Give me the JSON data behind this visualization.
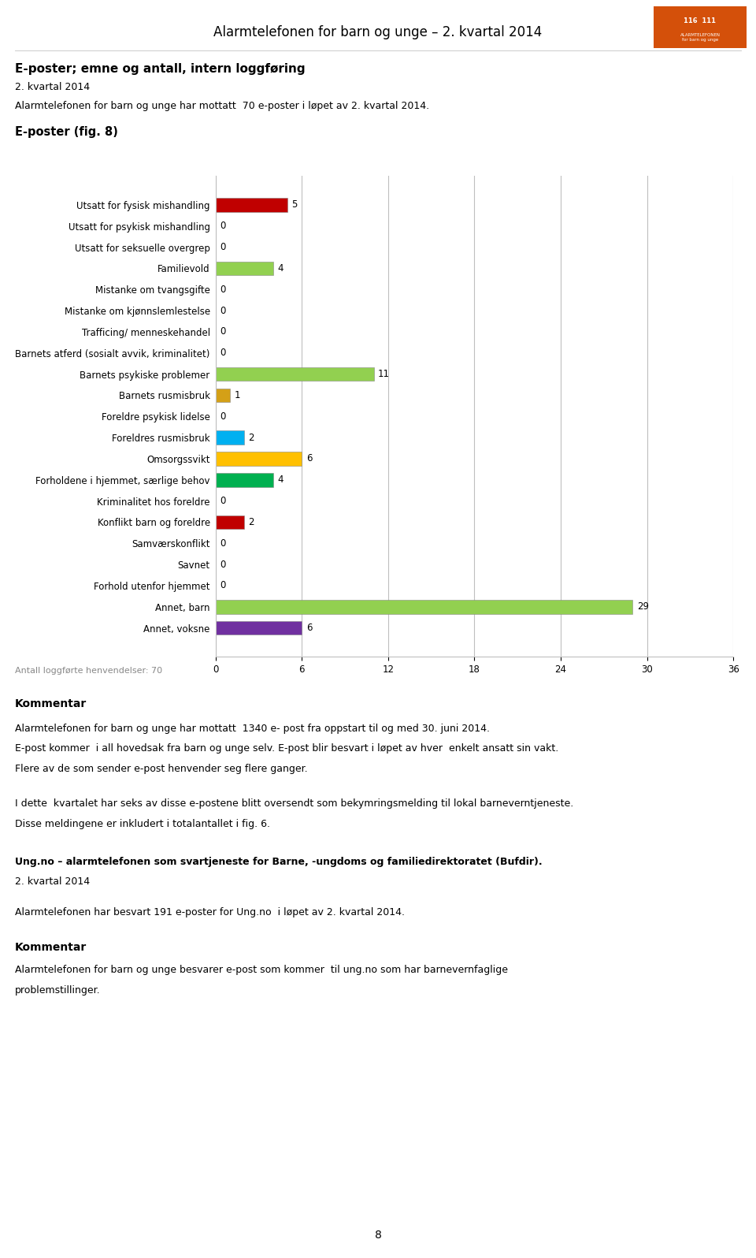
{
  "header_title": "Alarmtelefonen for barn og unge – 2. kvartal 2014",
  "section_title": "E-poster; emne og antall, intern loggføring",
  "section_subtitle": "2. kvartal 2014",
  "intro_text": "Alarmtelefonen for barn og unge har mottatt  70 e-poster i løpet av 2. kvartal 2014.",
  "fig_label": "E-poster (fig. 8)",
  "categories": [
    "Utsatt for fysisk mishandling",
    "Utsatt for psykisk mishandling",
    "Utsatt for seksuelle overgrep",
    "Familievold",
    "Mistanke om tvangsgifte",
    "Mistanke om kjønnslemlestelse",
    "Trafficing/ menneskehandel",
    "Barnets atferd (sosialt avvik, kriminalitet)",
    "Barnets psykiske problemer",
    "Barnets rusmisbruk",
    "Foreldre psykisk lidelse",
    "Foreldres rusmisbruk",
    "Omsorgssvikt",
    "Forholdene i hjemmet, særlige behov",
    "Kriminalitet hos foreldre",
    "Konflikt barn og foreldre",
    "Samværskonflikt",
    "Savnet",
    "Forhold utenfor hjemmet",
    "Annet, barn",
    "Annet, voksne"
  ],
  "values": [
    5,
    0,
    0,
    4,
    0,
    0,
    0,
    0,
    11,
    1,
    0,
    2,
    6,
    4,
    0,
    2,
    0,
    0,
    0,
    29,
    6
  ],
  "colors": [
    "#c00000",
    "#ffffff",
    "#ffffff",
    "#92d050",
    "#ffffff",
    "#ffffff",
    "#ffffff",
    "#ffffff",
    "#92d050",
    "#d4a017",
    "#ffffff",
    "#00b0f0",
    "#ffc000",
    "#00b050",
    "#ffffff",
    "#c00000",
    "#ffffff",
    "#ffffff",
    "#ffffff",
    "#92d050",
    "#7030a0"
  ],
  "xlim": [
    0,
    36
  ],
  "xticks": [
    0,
    6,
    12,
    18,
    24,
    30,
    36
  ],
  "footer_note": "Antall loggførte henvendelser: 70",
  "kommentar_title": "Kommentar",
  "kommentar_text1": "Alarmtelefonen for barn og unge har mottatt  1340 e- post fra oppstart til og med 30. juni 2014.",
  "kommentar_text2": "E-post kommer  i all hovedsak fra barn og unge selv. E-post blir besvart i løpet av hver  enkelt ansatt sin vakt.",
  "kommentar_text3": "Flere av de som sender e-post henvender seg flere ganger.",
  "section2_text1": "I dette  kvartalet har seks av disse e-postene blitt oversendt som bekymringsmelding til lokal barneverntjeneste.",
  "section2_text2": "Disse meldingene er inkludert i totalantallet i fig. 6.",
  "ungno_title": "Ung.no – alarmtelefonen som svartjeneste for Barne, -ungdoms og familiedirektoratet (Bufdir).",
  "ungno_subtitle": "2. kvartal 2014",
  "ungno_text": "Alarmtelefonen har besvart 191 e-poster for Ung.no  i løpet av 2. kvartal 2014.",
  "kommentar2_title": "Kommentar",
  "kommentar2_text1": "Alarmtelefonen for barn og unge besvarer e-post som kommer  til ung.no som har barnevernfaglige",
  "kommentar2_text2": "problemstillinger.",
  "page_number": "8",
  "background_color": "#ffffff",
  "grid_color": "#bfbfbf",
  "text_color": "#000000",
  "logo_color": "#d4500a",
  "title_font_size": 12,
  "body_font_size": 9,
  "label_font_size": 8.5,
  "value_font_size": 8.5,
  "tick_font_size": 8.5
}
